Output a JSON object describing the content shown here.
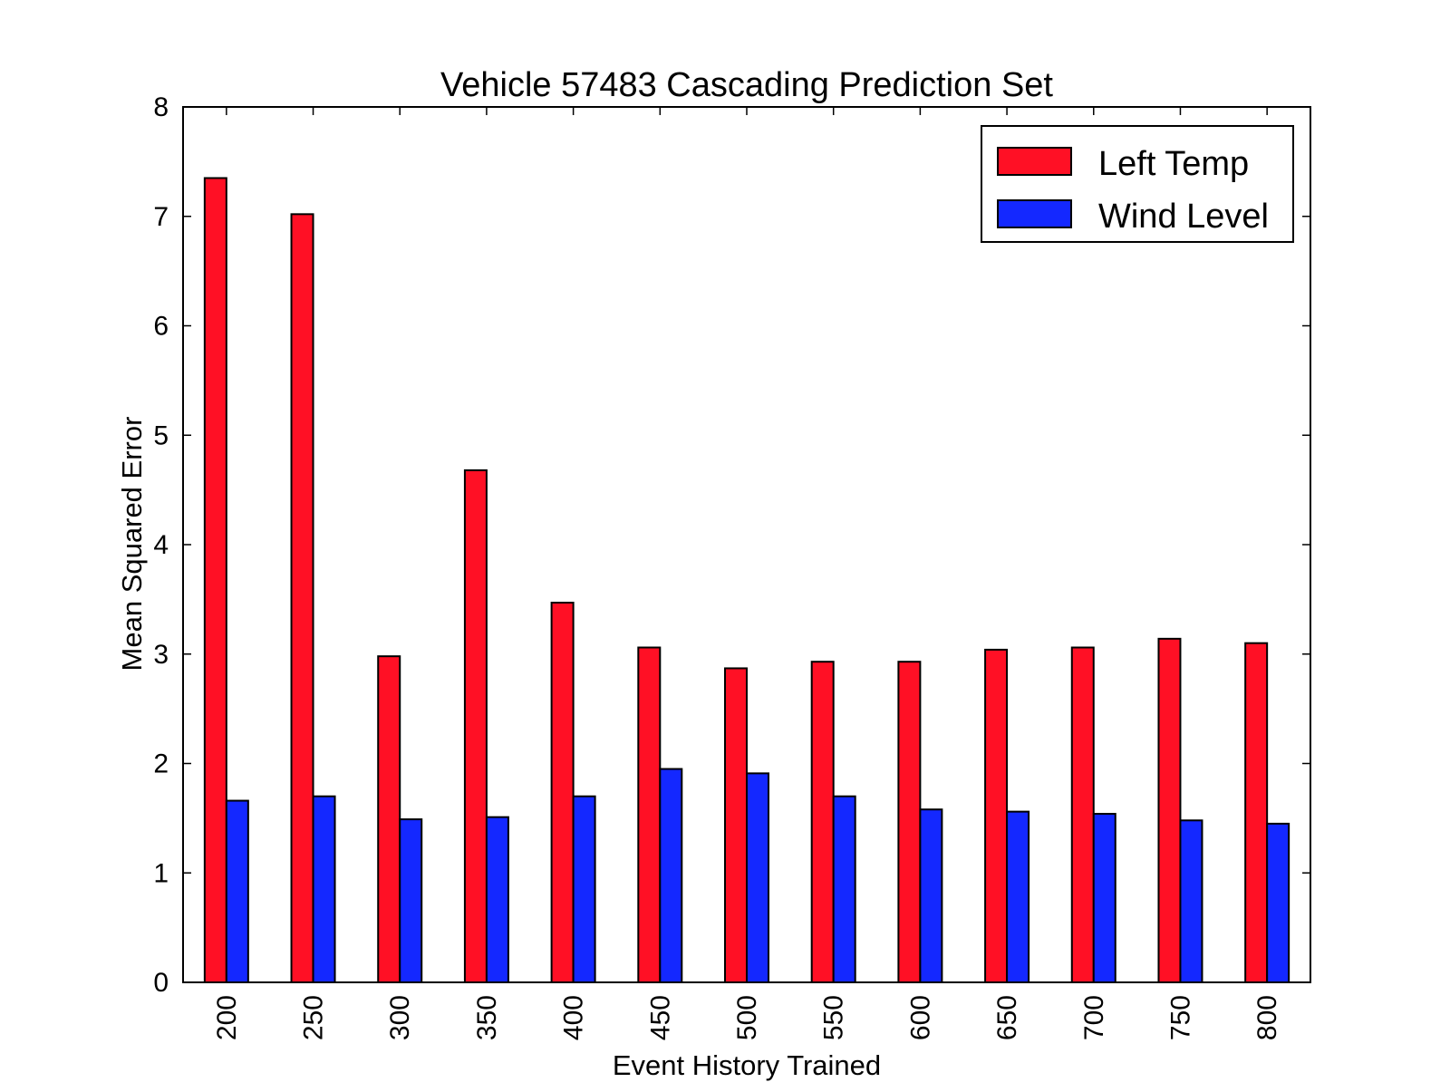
{
  "chart_data": {
    "type": "bar",
    "title": "Vehicle 57483 Cascading Prediction Set",
    "xlabel": "Event History Trained",
    "ylabel": "Mean Squared Error",
    "categories": [
      "200",
      "250",
      "300",
      "350",
      "400",
      "450",
      "500",
      "550",
      "600",
      "650",
      "700",
      "750",
      "800"
    ],
    "series": [
      {
        "name": "Left Temp",
        "color": "#ff1025",
        "values": [
          7.35,
          7.02,
          2.98,
          4.68,
          3.47,
          3.06,
          2.87,
          2.93,
          2.93,
          3.04,
          3.06,
          3.14,
          3.1
        ]
      },
      {
        "name": "Wind Level",
        "color": "#1428ff",
        "values": [
          1.66,
          1.7,
          1.49,
          1.51,
          1.7,
          1.95,
          1.91,
          1.7,
          1.58,
          1.56,
          1.54,
          1.48,
          1.45
        ]
      }
    ],
    "ylim": [
      0,
      8
    ],
    "yticks": [
      "0",
      "1",
      "2",
      "3",
      "4",
      "5",
      "6",
      "7",
      "8"
    ],
    "legend_position": "top-right",
    "grid": false,
    "xtick_rotation": "vertical"
  }
}
